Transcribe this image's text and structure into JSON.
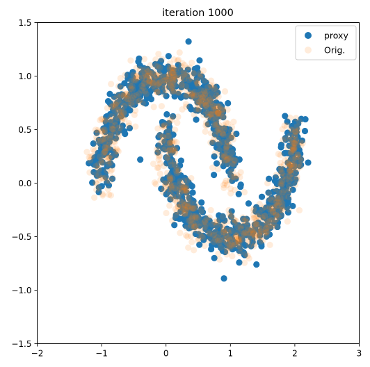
{
  "chart_data": {
    "type": "scatter",
    "title": "iteration 1000",
    "xlabel": "",
    "ylabel": "",
    "xlim": [
      -2,
      3
    ],
    "ylim": [
      -1.5,
      1.5
    ],
    "x_ticks": [
      "−2",
      "−1",
      "0",
      "1",
      "2",
      "3"
    ],
    "x_tick_values": [
      -2,
      -1,
      0,
      1,
      2,
      3
    ],
    "y_ticks": [
      "−1.5",
      "−1.0",
      "−0.5",
      "0.0",
      "0.5",
      "1.0",
      "1.5"
    ],
    "y_tick_values": [
      -1.5,
      -1.0,
      -0.5,
      0.0,
      0.5,
      1.0,
      1.5
    ],
    "grid": false,
    "legend_position": "top-right",
    "series": [
      {
        "name": "proxy",
        "color": "#1f77b4",
        "alpha": 1.0,
        "description_of_data": "two interleaving half-moon clusters (upper moon centered near (0,0) with radius 1, lower moon centered near (1,0.5) with radius 1), ~1000 points with noise",
        "outliers": [
          [
            0.9,
            -0.89
          ],
          [
            0.75,
            -0.7
          ],
          [
            2.1,
            0.6
          ],
          [
            -0.4,
            0.22
          ]
        ]
      },
      {
        "name": "Orig.",
        "color": "#ff7f0e",
        "alpha": 0.15,
        "description_of_data": "original two-moons dataset, same shape as proxy, drawn underneath with low opacity",
        "outliers": []
      }
    ]
  }
}
